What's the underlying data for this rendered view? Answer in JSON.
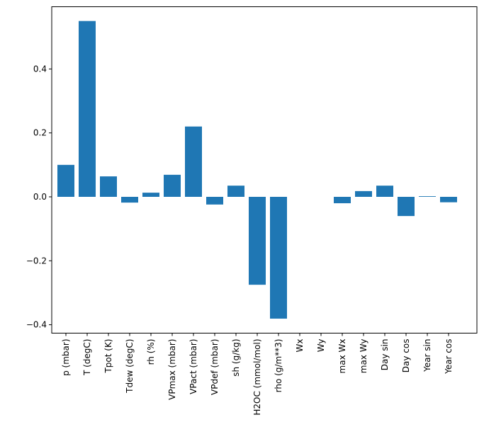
{
  "chart_data": {
    "type": "bar",
    "title": "",
    "xlabel": "",
    "ylabel": "",
    "categories": [
      "p (mbar)",
      "T (degC)",
      "Tpot (K)",
      "Tdew (degC)",
      "rh (%)",
      "VPmax (mbar)",
      "VPact (mbar)",
      "VPdef (mbar)",
      "sh (g/kg)",
      "H2OC (mmol/mol)",
      "rho (g/m**3)",
      "Wx",
      "Wy",
      "max Wx",
      "max Wy",
      "Day sin",
      "Day cos",
      "Year sin",
      "Year cos"
    ],
    "values": [
      0.1,
      0.55,
      0.064,
      -0.018,
      0.013,
      0.069,
      0.22,
      -0.024,
      0.035,
      -0.275,
      -0.381,
      0.0,
      0.0,
      -0.02,
      0.018,
      0.035,
      -0.06,
      0.002,
      -0.017
    ],
    "ylim": [
      -0.43,
      0.6
    ],
    "yticks": [
      -0.4,
      -0.2,
      0.0,
      0.2,
      0.4
    ],
    "ytick_labels": [
      "−0.4",
      "−0.2",
      "0.0",
      "0.2",
      "0.4"
    ],
    "bar_color": "#1f77b4",
    "grid": false,
    "legend": "none"
  }
}
